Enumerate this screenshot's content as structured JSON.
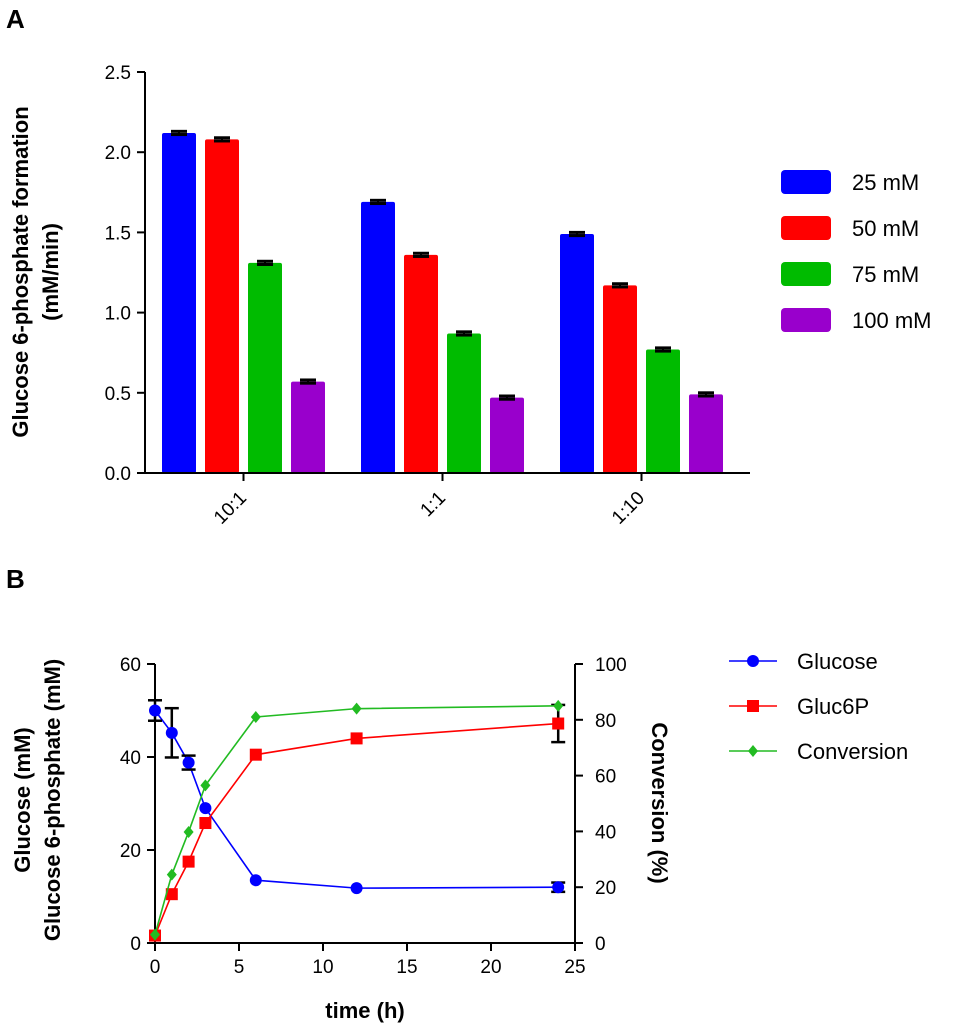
{
  "chart_data": [
    {
      "panel": "A",
      "type": "bar",
      "ylabel_line1": "Glucose 6-phosphate formation",
      "ylabel_line2": "(mM/min)",
      "xlabel": "",
      "categories": [
        "10:1",
        "1:1",
        "1:10"
      ],
      "ylim": [
        0,
        2.5
      ],
      "yticks": [
        "0.0",
        "0.5",
        "1.0",
        "1.5",
        "2.0",
        "2.5"
      ],
      "series": [
        {
          "name": "25 mM",
          "color": "#0000ff",
          "values": [
            2.12,
            1.69,
            1.49
          ],
          "errors": [
            0.01,
            0.01,
            0.01
          ]
        },
        {
          "name": "50 mM",
          "color": "#ff0000",
          "values": [
            2.08,
            1.36,
            1.17
          ],
          "errors": [
            0.01,
            0.01,
            0.01
          ]
        },
        {
          "name": "75 mM",
          "color": "#00bb00",
          "values": [
            1.31,
            0.87,
            0.77
          ],
          "errors": [
            0.01,
            0.01,
            0.01
          ]
        },
        {
          "name": "100 mM",
          "color": "#9900cc",
          "values": [
            0.57,
            0.47,
            0.49
          ],
          "errors": [
            0.01,
            0.01,
            0.01
          ]
        }
      ]
    },
    {
      "panel": "B",
      "type": "line",
      "xlabel": "time (h)",
      "ylabel_line1": "Glucose (mM)",
      "ylabel_line2": "Glucose 6-phosphate (mM)",
      "y2label": "Conversion (%)",
      "xlim": [
        0,
        25
      ],
      "ylim": [
        0,
        60
      ],
      "y2lim": [
        0,
        100
      ],
      "xticks": [
        "0",
        "5",
        "10",
        "15",
        "20",
        "25"
      ],
      "yticks": [
        "0",
        "20",
        "40",
        "60"
      ],
      "y2ticks": [
        "0",
        "20",
        "40",
        "60",
        "80",
        "100"
      ],
      "series": [
        {
          "name": "Glucose",
          "color": "#0000ff",
          "marker": "circle",
          "axis": "left",
          "x": [
            0,
            1,
            2,
            3,
            6,
            12,
            24
          ],
          "y": [
            50,
            45.2,
            38.8,
            29,
            13.5,
            11.8,
            12
          ],
          "errors": [
            2.2,
            5.3,
            1.5,
            0,
            0,
            0,
            1
          ]
        },
        {
          "name": "Gluc6P",
          "color": "#ff0000",
          "marker": "square",
          "axis": "left",
          "x": [
            0,
            1,
            2,
            3,
            6,
            12,
            24
          ],
          "y": [
            1.6,
            10.5,
            17.5,
            25.8,
            40.5,
            44,
            47.2
          ],
          "errors": [
            0,
            0,
            0,
            0,
            0,
            0,
            4
          ]
        },
        {
          "name": "Conversion",
          "color": "#22bb22",
          "marker": "diamond",
          "axis": "right",
          "x": [
            0,
            1,
            2,
            3,
            6,
            12,
            24
          ],
          "y": [
            3,
            24.5,
            39.8,
            56.5,
            81,
            84,
            85
          ],
          "errors": [
            0,
            0,
            0,
            0,
            0,
            0,
            0
          ]
        }
      ]
    }
  ]
}
